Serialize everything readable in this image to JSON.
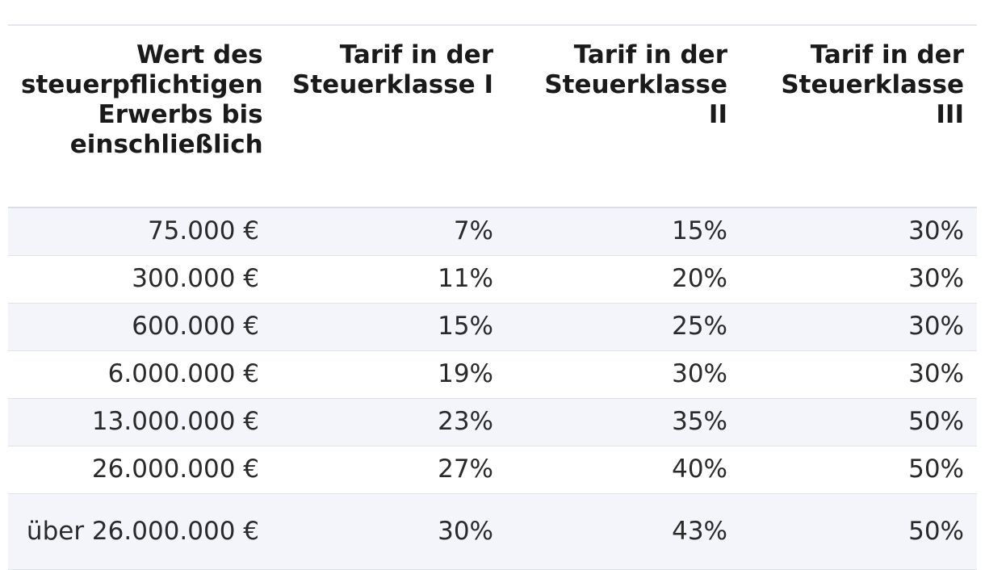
{
  "table": {
    "headers": [
      "Wert des steuerpflichtigen Erwerbs bis einschließlich",
      "Tarif in der Steuerklasse I",
      "Tarif in der Steuerklasse II",
      "Tarif in der Steuerklasse III"
    ],
    "rows": [
      [
        "75.000 €",
        "7%",
        "15%",
        "30%"
      ],
      [
        "300.000 €",
        "11%",
        "20%",
        "30%"
      ],
      [
        "600.000 €",
        "15%",
        "25%",
        "30%"
      ],
      [
        "6.000.000 €",
        "19%",
        "30%",
        "30%"
      ],
      [
        "13.000.000 €",
        "23%",
        "35%",
        "50%"
      ],
      [
        "26.000.000 €",
        "27%",
        "40%",
        "50%"
      ],
      [
        "über 26.000.000 €",
        "30%",
        "43%",
        "50%"
      ]
    ]
  },
  "colors": {
    "row_stripe": "#f3f5fb",
    "border": "#dfe2e7",
    "text": "#1a1a1a"
  }
}
